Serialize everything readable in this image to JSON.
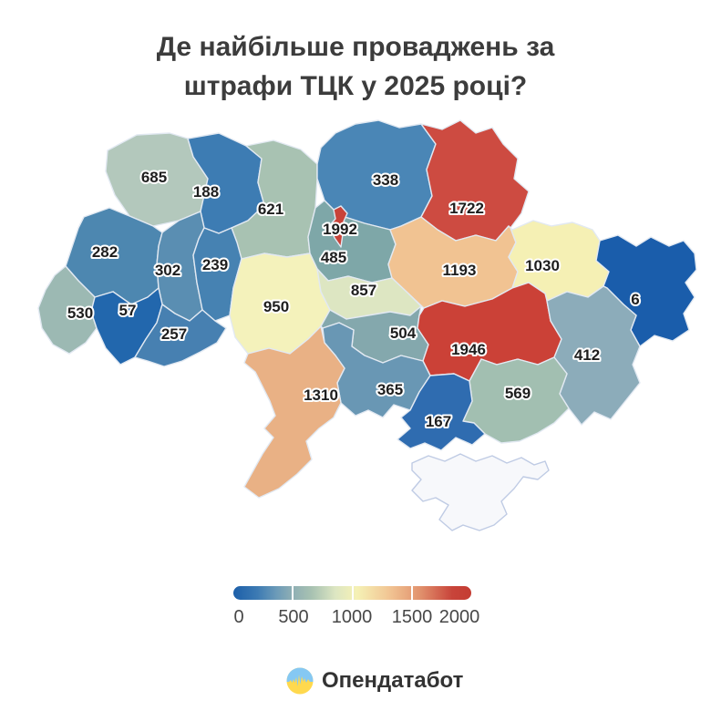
{
  "title": {
    "line1": "Де найбільше проваджень за",
    "line2": "штрафи ТЦК у 2025 році?"
  },
  "map": {
    "border_color": "#e2e9f2",
    "regions": [
      {
        "id": "volyn",
        "value": "685",
        "color": "#b3c8bc"
      },
      {
        "id": "rivne",
        "value": "188",
        "color": "#3d7cb3"
      },
      {
        "id": "zhytomyr",
        "value": "621",
        "color": "#a8c2b2"
      },
      {
        "id": "chernihiv",
        "value": "338",
        "color": "#4a86b6"
      },
      {
        "id": "sumy",
        "value": "1722",
        "color": "#cd4b41"
      },
      {
        "id": "kyiv_oblast",
        "value": "485",
        "color": "#7ea7a8"
      },
      {
        "id": "poltava",
        "value": "1193",
        "color": "#f1c392"
      },
      {
        "id": "kharkiv",
        "value": "1030",
        "color": "#f5f0b4"
      },
      {
        "id": "luhansk",
        "value": "6",
        "color": "#1a5dab"
      },
      {
        "id": "lviv",
        "value": "282",
        "color": "#4d87b0"
      },
      {
        "id": "ternopil",
        "value": "302",
        "color": "#5a8eb2"
      },
      {
        "id": "khmelnytskyi",
        "value": "239",
        "color": "#4682b2"
      },
      {
        "id": "zakarpattia",
        "value": "530",
        "color": "#9cb9b3"
      },
      {
        "id": "ivano_frankivsk",
        "value": "57",
        "color": "#2267ad"
      },
      {
        "id": "chernivtsi",
        "value": "257",
        "color": "#4780b1"
      },
      {
        "id": "vinnytsia",
        "value": "950",
        "color": "#f4f2bb"
      },
      {
        "id": "cherkasy",
        "value": "857",
        "color": "#dde6c2"
      },
      {
        "id": "kirovohrad",
        "value": "504",
        "color": "#84a8ad"
      },
      {
        "id": "dnipropetrovsk",
        "value": "1946",
        "color": "#cb4137"
      },
      {
        "id": "donetsk",
        "value": "412",
        "color": "#8cacba"
      },
      {
        "id": "zaporizhzhia",
        "value": "569",
        "color": "#a2bfb1"
      },
      {
        "id": "mykolaiv",
        "value": "365",
        "color": "#6997b4"
      },
      {
        "id": "kherson",
        "value": "167",
        "color": "#2f6cb0"
      },
      {
        "id": "odesa",
        "value": "1310",
        "color": "#e9b185"
      },
      {
        "id": "kyiv_city",
        "value": "1992",
        "color": "#c94339"
      },
      {
        "id": "crimea",
        "value": null,
        "color": "#f7f8fb",
        "border": "#bfcbe4"
      }
    ]
  },
  "legend": {
    "ticks": [
      "0",
      "500",
      "1000",
      "1500",
      "2000"
    ],
    "gradient": [
      "#1d5fa9 0%",
      "#3c7ab3 10%",
      "#6b9ab8 18%",
      "#8fafb4 25%",
      "#a8c2b2 33%",
      "#dde6c2 43%",
      "#f5f1b5 52%",
      "#f2c795 65%",
      "#e2946f 78%",
      "#c8443a 92%",
      "#c43c32 100%"
    ]
  },
  "footer": {
    "brand": "Опендатабот",
    "flag_blue": "#85c8f3",
    "flag_yellow": "#ffd94e"
  }
}
